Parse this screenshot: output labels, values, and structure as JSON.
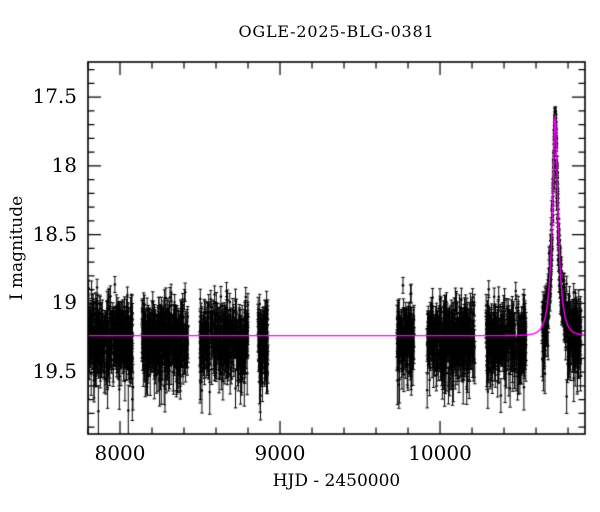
{
  "chart_data": {
    "type": "scatter",
    "title": "OGLE-2025-BLG-0381",
    "xlabel": "HJD - 2450000",
    "ylabel": "I magnitude",
    "xlim": [
      7800,
      10906
    ],
    "ylim": [
      19.95,
      17.245
    ],
    "y_axis_inverted": true,
    "x_major_ticks": [
      8000,
      9000,
      10000
    ],
    "x_minor_step": 200,
    "y_major_ticks": [
      17.5,
      18,
      18.5,
      19,
      19.5
    ],
    "y_minor_step": 0.1,
    "grid": false,
    "legend": null,
    "background_color": "#ffffff",
    "frame_color": "#000000",
    "point_color": "#000000",
    "model_color": "#ff00ff",
    "marker": "filled-circle-with-error-bars",
    "baseline_mag": 19.235,
    "scatter_sigma": 0.13,
    "typical_error_mag": 0.1,
    "faint_outlier_fraction": 0.03,
    "microlens_model": {
      "t0": 10720,
      "tE": 42,
      "u0": 0.235,
      "peak_mag": 17.64,
      "peak_amplification": 4.34
    },
    "observing_seasons": [
      {
        "start": 7795,
        "end": 8082,
        "n": 400
      },
      {
        "start": 8138,
        "end": 8425,
        "n": 380
      },
      {
        "start": 8500,
        "end": 8800,
        "n": 350
      },
      {
        "start": 8862,
        "end": 8925,
        "n": 100
      },
      {
        "start": 9731,
        "end": 9838,
        "n": 140
      },
      {
        "start": 9919,
        "end": 10219,
        "n": 380
      },
      {
        "start": 10288,
        "end": 10538,
        "n": 320
      },
      {
        "start": 10638,
        "end": 10880,
        "n": 380
      },
      {
        "start": 10685,
        "end": 10760,
        "n": 130
      }
    ],
    "seed": 20250381
  }
}
